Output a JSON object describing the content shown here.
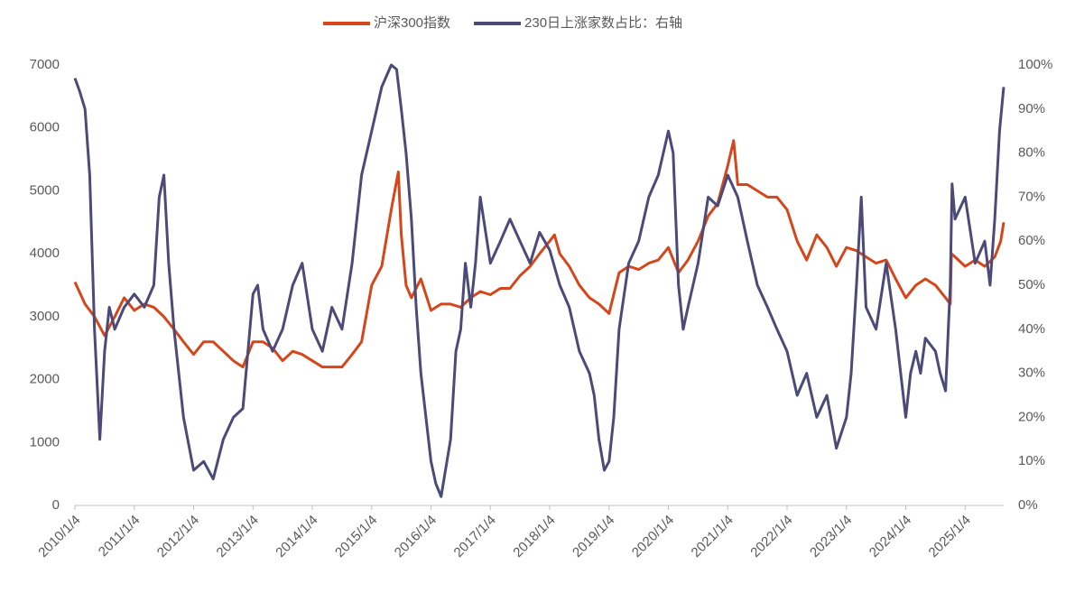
{
  "chart_data": {
    "type": "line",
    "series": [
      {
        "name": "沪深300指数",
        "color": "#d5461a",
        "axis": "y",
        "x": [
          2010,
          2010.17,
          2010.33,
          2010.5,
          2010.67,
          2010.83,
          2011,
          2011.17,
          2011.33,
          2011.5,
          2011.67,
          2011.83,
          2012,
          2012.17,
          2012.33,
          2012.5,
          2012.67,
          2012.83,
          2013,
          2013.17,
          2013.33,
          2013.5,
          2013.67,
          2013.83,
          2014,
          2014.17,
          2014.33,
          2014.5,
          2014.67,
          2014.83,
          2015,
          2015.17,
          2015.33,
          2015.45,
          2015.5,
          2015.58,
          2015.67,
          2015.83,
          2016,
          2016.17,
          2016.33,
          2016.5,
          2016.67,
          2016.83,
          2017,
          2017.17,
          2017.33,
          2017.5,
          2017.67,
          2017.83,
          2018,
          2018.08,
          2018.17,
          2018.33,
          2018.5,
          2018.67,
          2018.83,
          2019,
          2019.17,
          2019.33,
          2019.5,
          2019.67,
          2019.83,
          2020,
          2020.17,
          2020.33,
          2020.5,
          2020.67,
          2020.83,
          2021,
          2021.1,
          2021.17,
          2021.33,
          2021.5,
          2021.67,
          2021.83,
          2022,
          2022.17,
          2022.33,
          2022.5,
          2022.67,
          2022.83,
          2023,
          2023.17,
          2023.33,
          2023.5,
          2023.67,
          2023.83,
          2024,
          2024.17,
          2024.33,
          2024.5,
          2024.67,
          2024.75,
          2024.77,
          2024.83,
          2025,
          2025.17,
          2025.33,
          2025.5,
          2025.6,
          2025.65
        ],
        "values": [
          3550,
          3200,
          3000,
          2700,
          3000,
          3300,
          3100,
          3200,
          3150,
          3000,
          2800,
          2600,
          2400,
          2600,
          2600,
          2450,
          2300,
          2200,
          2600,
          2600,
          2500,
          2300,
          2450,
          2400,
          2300,
          2200,
          2200,
          2200,
          2400,
          2600,
          3500,
          3800,
          4700,
          5300,
          4300,
          3500,
          3300,
          3600,
          3100,
          3200,
          3200,
          3150,
          3300,
          3400,
          3350,
          3450,
          3450,
          3650,
          3800,
          4000,
          4200,
          4300,
          4000,
          3800,
          3500,
          3300,
          3200,
          3050,
          3700,
          3800,
          3750,
          3850,
          3900,
          4100,
          3700,
          3900,
          4200,
          4600,
          4800,
          5400,
          5800,
          5100,
          5100,
          5000,
          4900,
          4900,
          4700,
          4200,
          3900,
          4300,
          4100,
          3800,
          4100,
          4050,
          3950,
          3850,
          3900,
          3600,
          3300,
          3500,
          3600,
          3500,
          3300,
          3200,
          4000,
          3950,
          3800,
          3900,
          3800,
          3950,
          4200,
          4500
        ]
      },
      {
        "name": "230日上涨家数占比：右轴",
        "color": "#4b4a78",
        "axis": "y2",
        "x": [
          2010,
          2010.08,
          2010.17,
          2010.25,
          2010.33,
          2010.42,
          2010.5,
          2010.58,
          2010.67,
          2010.83,
          2011,
          2011.17,
          2011.33,
          2011.42,
          2011.5,
          2011.58,
          2011.67,
          2011.83,
          2012,
          2012.17,
          2012.33,
          2012.5,
          2012.67,
          2012.83,
          2013,
          2013.08,
          2013.17,
          2013.33,
          2013.5,
          2013.67,
          2013.83,
          2014,
          2014.17,
          2014.33,
          2014.5,
          2014.67,
          2014.83,
          2015,
          2015.17,
          2015.33,
          2015.42,
          2015.5,
          2015.58,
          2015.67,
          2015.75,
          2015.83,
          2016,
          2016.08,
          2016.17,
          2016.33,
          2016.42,
          2016.5,
          2016.58,
          2016.67,
          2016.75,
          2016.83,
          2017,
          2017.17,
          2017.33,
          2017.5,
          2017.67,
          2017.83,
          2018,
          2018.17,
          2018.33,
          2018.5,
          2018.67,
          2018.75,
          2018.83,
          2018.92,
          2019,
          2019.08,
          2019.17,
          2019.33,
          2019.5,
          2019.67,
          2019.83,
          2020,
          2020.08,
          2020.17,
          2020.25,
          2020.33,
          2020.5,
          2020.67,
          2020.83,
          2021,
          2021.17,
          2021.33,
          2021.5,
          2021.67,
          2021.83,
          2022,
          2022.17,
          2022.33,
          2022.5,
          2022.67,
          2022.83,
          2023,
          2023.08,
          2023.17,
          2023.25,
          2023.33,
          2023.5,
          2023.67,
          2023.83,
          2024,
          2024.08,
          2024.17,
          2024.25,
          2024.33,
          2024.5,
          2024.58,
          2024.67,
          2024.75,
          2024.78,
          2024.83,
          2025,
          2025.17,
          2025.33,
          2025.42,
          2025.5,
          2025.58,
          2025.65
        ],
        "values": [
          97,
          94,
          90,
          75,
          40,
          15,
          35,
          45,
          40,
          45,
          48,
          45,
          50,
          70,
          75,
          55,
          40,
          20,
          8,
          10,
          6,
          15,
          20,
          22,
          48,
          50,
          40,
          35,
          40,
          50,
          55,
          40,
          35,
          45,
          40,
          55,
          75,
          85,
          95,
          100,
          99,
          90,
          80,
          65,
          45,
          30,
          10,
          5,
          2,
          15,
          35,
          40,
          55,
          45,
          55,
          70,
          55,
          60,
          65,
          60,
          55,
          62,
          58,
          50,
          45,
          35,
          30,
          25,
          15,
          8,
          10,
          20,
          40,
          55,
          60,
          70,
          75,
          85,
          80,
          50,
          40,
          45,
          55,
          70,
          68,
          75,
          70,
          60,
          50,
          45,
          40,
          35,
          25,
          30,
          20,
          25,
          13,
          20,
          30,
          50,
          70,
          45,
          40,
          55,
          40,
          20,
          30,
          35,
          30,
          38,
          35,
          30,
          26,
          50,
          73,
          65,
          70,
          55,
          60,
          50,
          65,
          85,
          95
        ]
      }
    ],
    "xlim": [
      2010,
      2025.65
    ],
    "xticks": [
      {
        "value": 2010,
        "label": "2010/1/4"
      },
      {
        "value": 2011,
        "label": "2011/1/4"
      },
      {
        "value": 2012,
        "label": "2012/1/4"
      },
      {
        "value": 2013,
        "label": "2013/1/4"
      },
      {
        "value": 2014,
        "label": "2014/1/4"
      },
      {
        "value": 2015,
        "label": "2015/1/4"
      },
      {
        "value": 2016,
        "label": "2016/1/4"
      },
      {
        "value": 2017,
        "label": "2017/1/4"
      },
      {
        "value": 2018,
        "label": "2018/1/4"
      },
      {
        "value": 2019,
        "label": "2019/1/4"
      },
      {
        "value": 2020,
        "label": "2020/1/4"
      },
      {
        "value": 2021,
        "label": "2021/1/4"
      },
      {
        "value": 2022,
        "label": "2022/1/4"
      },
      {
        "value": 2023,
        "label": "2023/1/4"
      },
      {
        "value": 2024,
        "label": "2024/1/4"
      },
      {
        "value": 2025,
        "label": "2025/1/4"
      }
    ],
    "ylim": [
      0,
      7000
    ],
    "yticks": [
      0,
      1000,
      2000,
      3000,
      4000,
      5000,
      6000,
      7000
    ],
    "y2lim": [
      0,
      100
    ],
    "y2ticks": [
      {
        "value": 0,
        "label": "0%"
      },
      {
        "value": 10,
        "label": "10%"
      },
      {
        "value": 20,
        "label": "20%"
      },
      {
        "value": 30,
        "label": "30%"
      },
      {
        "value": 40,
        "label": "40%"
      },
      {
        "value": 50,
        "label": "50%"
      },
      {
        "value": 60,
        "label": "60%"
      },
      {
        "value": 70,
        "label": "70%"
      },
      {
        "value": 80,
        "label": "80%"
      },
      {
        "value": 90,
        "label": "90%"
      },
      {
        "value": 100,
        "label": "100%"
      }
    ],
    "legend": "top"
  }
}
